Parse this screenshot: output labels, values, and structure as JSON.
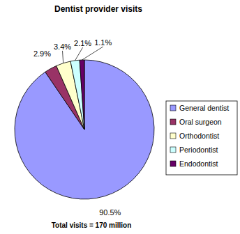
{
  "chart_data": {
    "type": "pie",
    "title": "Dentist provider visits",
    "categories": [
      "General dentist",
      "Oral surgeon",
      "Orthodontist",
      "Periodontist",
      "Endodontist"
    ],
    "values": [
      90.5,
      2.9,
      3.4,
      2.1,
      1.1
    ],
    "value_labels": [
      "90.5%",
      "2.9%",
      "3.4%",
      "2.1%",
      "1.1%"
    ],
    "colors": [
      "#9999ff",
      "#993366",
      "#ffffcc",
      "#ccffff",
      "#660066"
    ],
    "data_labels": true,
    "legend": "right",
    "annotations": [
      "Total visits = 170 million"
    ]
  }
}
